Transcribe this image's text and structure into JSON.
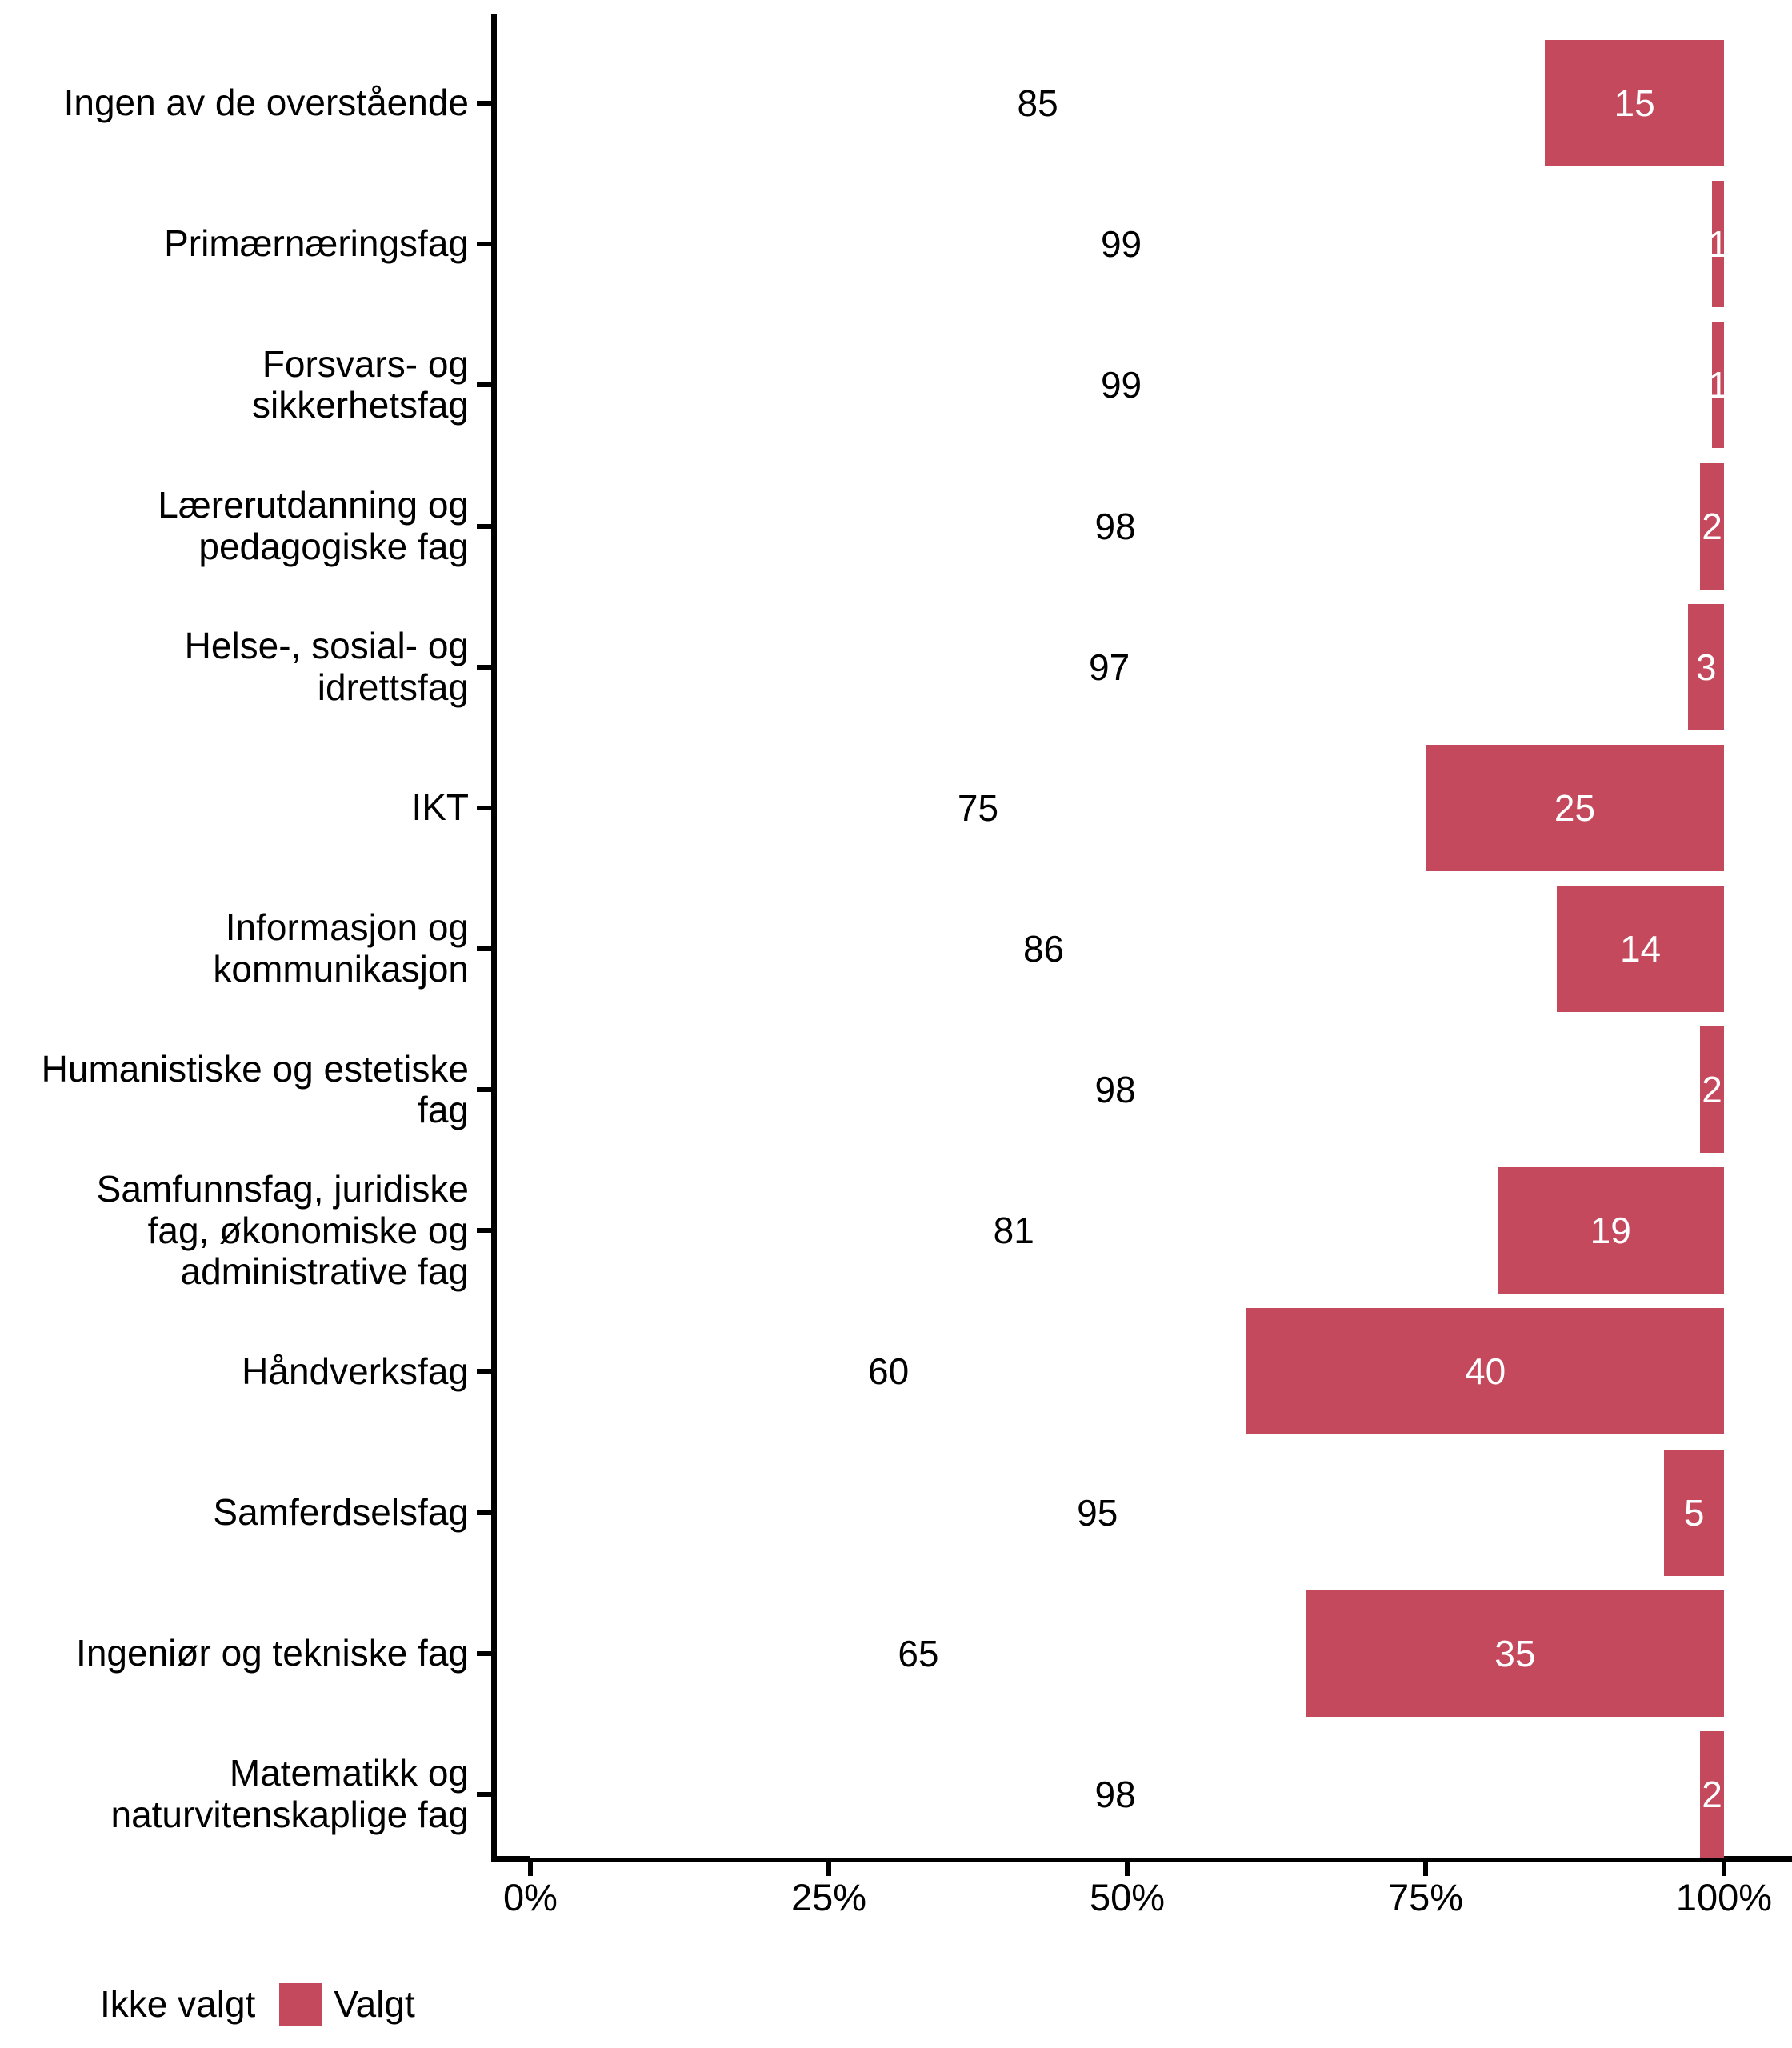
{
  "chart_data": {
    "type": "bar",
    "orientation": "horizontal",
    "stacked": true,
    "percent_scale": true,
    "title": "",
    "xlabel": "",
    "ylabel": "",
    "grid": false,
    "categories": [
      "Ingen av de overstående",
      "Primærnæringsfag",
      "Forsvars- og\nsikkerhetsfag",
      "Lærerutdanning og\npedagogiske fag",
      "Helse-, sosial- og\nidrettsfag",
      "IKT",
      "Informasjon og\nkommunikasjon",
      "Humanistiske og estetiske\nfag",
      "Samfunnsfag, juridiske\nfag, økonomiske og\nadministrative fag",
      "Håndverksfag",
      "Samferdselsfag",
      "Ingeniør og tekniske fag",
      "Matematikk og\nnaturvitenskaplige fag"
    ],
    "series": [
      {
        "name": "Ikke valgt",
        "color": "#FFFFFF",
        "label_color": "#000000",
        "values": [
          85,
          99,
          99,
          98,
          97,
          75,
          86,
          98,
          81,
          60,
          95,
          65,
          98
        ]
      },
      {
        "name": "Valgt",
        "color": "#C4495C",
        "label_color": "#FFFFFF",
        "values": [
          15,
          1,
          1,
          2,
          3,
          25,
          14,
          2,
          19,
          40,
          5,
          35,
          2
        ]
      }
    ],
    "x_axis": {
      "range": [
        0,
        100
      ],
      "ticks": [
        0,
        25,
        50,
        75,
        100
      ],
      "tick_labels": [
        "0%",
        "25%",
        "50%",
        "75%",
        "100%"
      ]
    },
    "legend": {
      "position": "bottom-left",
      "items": [
        {
          "label": "Ikke valgt",
          "color": "#FFFFFF"
        },
        {
          "label": "Valgt",
          "color": "#C4495C"
        }
      ]
    },
    "colors": {
      "axis": "#000000",
      "text": "#000000",
      "background": "#FFFFFF",
      "accent": "#C4495C"
    }
  }
}
